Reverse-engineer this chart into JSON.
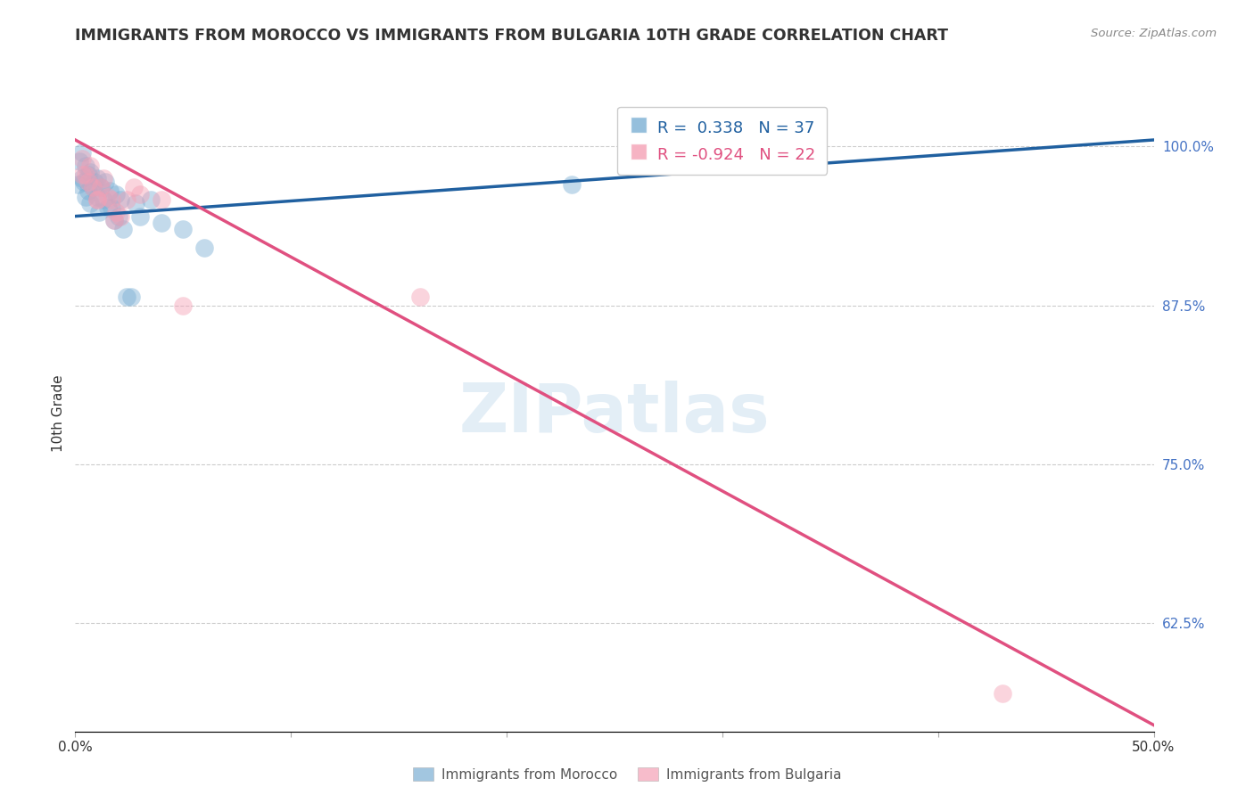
{
  "title": "IMMIGRANTS FROM MOROCCO VS IMMIGRANTS FROM BULGARIA 10TH GRADE CORRELATION CHART",
  "source": "Source: ZipAtlas.com",
  "ylabel": "10th Grade",
  "ytick_labels": [
    "100.0%",
    "87.5%",
    "75.0%",
    "62.5%"
  ],
  "ytick_positions": [
    1.0,
    0.875,
    0.75,
    0.625
  ],
  "xlim": [
    0.0,
    0.5
  ],
  "ylim": [
    0.54,
    1.04
  ],
  "morocco_R": 0.338,
  "morocco_N": 37,
  "bulgaria_R": -0.924,
  "bulgaria_N": 22,
  "morocco_color": "#7bafd4",
  "bulgaria_color": "#f4a0b5",
  "morocco_line_color": "#2060a0",
  "bulgaria_line_color": "#e05080",
  "watermark": "ZIPatlas",
  "morocco_line_x": [
    0.0,
    0.5
  ],
  "morocco_line_y": [
    0.945,
    1.005
  ],
  "bulgaria_line_x": [
    0.0,
    0.5
  ],
  "bulgaria_line_y": [
    1.005,
    0.545
  ],
  "morocco_scatter_x": [
    0.001,
    0.002,
    0.003,
    0.003,
    0.004,
    0.005,
    0.005,
    0.006,
    0.006,
    0.007,
    0.007,
    0.008,
    0.009,
    0.01,
    0.01,
    0.011,
    0.012,
    0.013,
    0.014,
    0.015,
    0.016,
    0.017,
    0.018,
    0.019,
    0.02,
    0.021,
    0.022,
    0.024,
    0.026,
    0.028,
    0.03,
    0.035,
    0.04,
    0.05,
    0.06,
    0.23,
    0.27
  ],
  "morocco_scatter_y": [
    0.97,
    0.988,
    0.975,
    0.995,
    0.972,
    0.985,
    0.96,
    0.978,
    0.965,
    0.98,
    0.955,
    0.968,
    0.972,
    0.96,
    0.975,
    0.948,
    0.968,
    0.958,
    0.972,
    0.952,
    0.965,
    0.952,
    0.942,
    0.962,
    0.945,
    0.958,
    0.935,
    0.882,
    0.882,
    0.955,
    0.945,
    0.958,
    0.94,
    0.935,
    0.92,
    0.97,
    0.985
  ],
  "bulgaria_scatter_x": [
    0.003,
    0.005,
    0.007,
    0.008,
    0.01,
    0.012,
    0.013,
    0.015,
    0.017,
    0.019,
    0.021,
    0.024,
    0.027,
    0.03,
    0.04,
    0.05,
    0.16,
    0.43,
    0.003,
    0.006,
    0.01,
    0.018
  ],
  "bulgaria_scatter_y": [
    0.99,
    0.978,
    0.985,
    0.968,
    0.958,
    0.968,
    0.975,
    0.96,
    0.958,
    0.948,
    0.945,
    0.958,
    0.968,
    0.962,
    0.958,
    0.875,
    0.882,
    0.57,
    0.978,
    0.972,
    0.958,
    0.942
  ],
  "grid_color": "#cccccc",
  "bg_color": "#ffffff",
  "tick_color": "#4472C4"
}
